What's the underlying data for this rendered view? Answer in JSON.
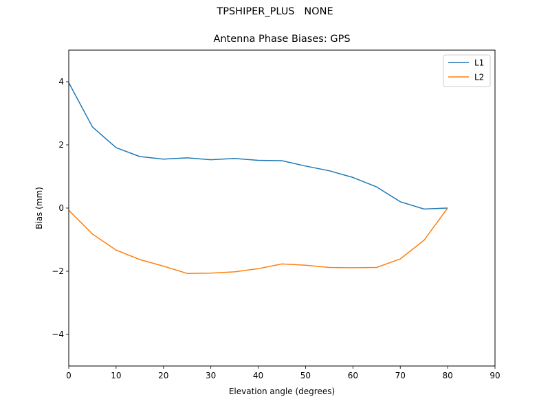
{
  "figure": {
    "suptitle": "TPSHIPER_PLUS   NONE",
    "title": "Antenna Phase Biases: GPS"
  },
  "chart_data": {
    "type": "line",
    "title": "Antenna Phase Biases: GPS",
    "suptitle": "TPSHIPER_PLUS   NONE",
    "xlabel": "Elevation angle (degrees)",
    "ylabel": "Bias (mm)",
    "xlim": [
      0,
      90
    ],
    "ylim": [
      -5,
      5
    ],
    "xticks": [
      0,
      10,
      20,
      30,
      40,
      50,
      60,
      70,
      80,
      90
    ],
    "yticks": [
      -4,
      -2,
      0,
      2,
      4
    ],
    "ytick_labels": [
      "−4",
      "−2",
      "0",
      "2",
      "4"
    ],
    "grid": false,
    "legend_position": "upper right",
    "x": [
      0,
      5,
      10,
      15,
      20,
      25,
      30,
      35,
      40,
      45,
      50,
      55,
      60,
      65,
      70,
      75,
      80
    ],
    "series": [
      {
        "name": "L1",
        "color": "#1f77b4",
        "values": [
          3.97,
          2.57,
          1.91,
          1.63,
          1.55,
          1.59,
          1.53,
          1.57,
          1.51,
          1.5,
          1.33,
          1.18,
          0.97,
          0.67,
          0.2,
          -0.03,
          0.0
        ]
      },
      {
        "name": "L2",
        "color": "#ff7f0e",
        "values": [
          -0.07,
          -0.82,
          -1.33,
          -1.63,
          -1.84,
          -2.07,
          -2.06,
          -2.02,
          -1.92,
          -1.77,
          -1.81,
          -1.88,
          -1.89,
          -1.88,
          -1.61,
          -1.02,
          0.0
        ]
      }
    ]
  }
}
